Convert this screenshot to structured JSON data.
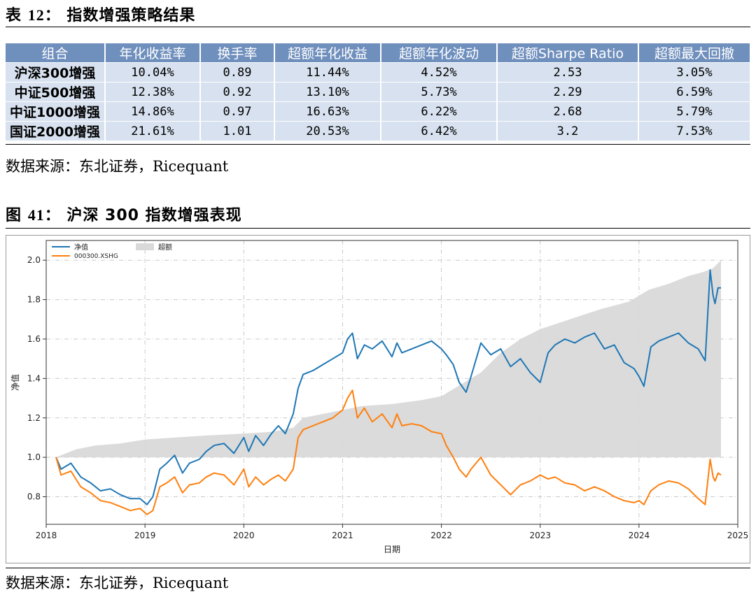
{
  "table_caption": {
    "prefix": "表",
    "number": "12：",
    "title": "指数增强策略结果"
  },
  "table": {
    "headers": [
      "组合",
      "年化收益率",
      "换手率",
      "超额年化收益",
      "超额年化波动",
      "超额Sharpe Ratio",
      "超额最大回撤"
    ],
    "rows": [
      [
        "沪深300增强",
        "10.04%",
        "0.89",
        "11.44%",
        "4.52%",
        "2.53",
        "3.05%"
      ],
      [
        "中证500增强",
        "12.38%",
        "0.92",
        "13.10%",
        "5.73%",
        "2.29",
        "6.59%"
      ],
      [
        "中证1000增强",
        "14.86%",
        "0.97",
        "16.63%",
        "6.22%",
        "2.68",
        "5.79%"
      ],
      [
        "国证2000增强",
        "21.61%",
        "1.01",
        "20.53%",
        "6.42%",
        "3.2",
        "7.53%"
      ]
    ]
  },
  "source_1": "数据来源：东北证券，Ricequant",
  "figure_caption": {
    "prefix": "图",
    "number": "41：",
    "title": "沪深 300 指数增强表现"
  },
  "source_2": "数据来源：东北证券，Ricequant",
  "chart_data": {
    "type": "line",
    "xlabel": "日期",
    "ylabel": "净值",
    "xlim": [
      2018.0,
      2025.0
    ],
    "ylim": [
      0.66,
      2.1
    ],
    "x_ticks": [
      "2018",
      "2019",
      "2020",
      "2021",
      "2022",
      "2023",
      "2024",
      "2025"
    ],
    "y_ticks": [
      "0.8",
      "1.0",
      "1.2",
      "1.4",
      "1.6",
      "1.8",
      "2.0"
    ],
    "grid": true,
    "legend": "top-left",
    "series": [
      {
        "name": "净值",
        "kind": "line",
        "color": "#1f77b4",
        "x": [
          2018.1,
          2018.15,
          2018.25,
          2018.35,
          2018.45,
          2018.55,
          2018.65,
          2018.75,
          2018.85,
          2018.95,
          2019.02,
          2019.08,
          2019.15,
          2019.22,
          2019.3,
          2019.38,
          2019.45,
          2019.55,
          2019.62,
          2019.7,
          2019.8,
          2019.9,
          2020.0,
          2020.05,
          2020.12,
          2020.2,
          2020.28,
          2020.35,
          2020.42,
          2020.5,
          2020.55,
          2020.6,
          2020.7,
          2020.8,
          2020.9,
          2021.0,
          2021.05,
          2021.1,
          2021.15,
          2021.22,
          2021.3,
          2021.4,
          2021.5,
          2021.55,
          2021.6,
          2021.7,
          2021.8,
          2021.9,
          2022.0,
          2022.05,
          2022.12,
          2022.18,
          2022.25,
          2022.3,
          2022.4,
          2022.5,
          2022.6,
          2022.7,
          2022.8,
          2022.9,
          2023.0,
          2023.08,
          2023.15,
          2023.25,
          2023.35,
          2023.45,
          2023.55,
          2023.65,
          2023.75,
          2023.85,
          2023.95,
          2024.0,
          2024.05,
          2024.12,
          2024.2,
          2024.3,
          2024.4,
          2024.5,
          2024.6,
          2024.67,
          2024.72,
          2024.75,
          2024.77,
          2024.8,
          2024.83
        ],
        "values": [
          1.0,
          0.94,
          0.97,
          0.9,
          0.87,
          0.83,
          0.84,
          0.81,
          0.79,
          0.79,
          0.76,
          0.8,
          0.94,
          0.97,
          1.01,
          0.92,
          0.97,
          0.99,
          1.03,
          1.06,
          1.07,
          1.02,
          1.1,
          1.03,
          1.11,
          1.06,
          1.12,
          1.16,
          1.12,
          1.22,
          1.35,
          1.42,
          1.44,
          1.47,
          1.5,
          1.53,
          1.6,
          1.63,
          1.5,
          1.57,
          1.55,
          1.59,
          1.51,
          1.58,
          1.53,
          1.55,
          1.57,
          1.59,
          1.55,
          1.52,
          1.47,
          1.38,
          1.33,
          1.41,
          1.58,
          1.52,
          1.55,
          1.46,
          1.5,
          1.43,
          1.38,
          1.53,
          1.57,
          1.6,
          1.58,
          1.61,
          1.63,
          1.55,
          1.57,
          1.48,
          1.45,
          1.41,
          1.36,
          1.56,
          1.59,
          1.61,
          1.63,
          1.58,
          1.55,
          1.49,
          1.95,
          1.82,
          1.78,
          1.86,
          1.86
        ]
      },
      {
        "name": "000300.XSHG",
        "kind": "line",
        "color": "#ff7f0e",
        "x": [
          2018.1,
          2018.15,
          2018.25,
          2018.35,
          2018.45,
          2018.55,
          2018.65,
          2018.75,
          2018.85,
          2018.95,
          2019.02,
          2019.08,
          2019.15,
          2019.22,
          2019.3,
          2019.38,
          2019.45,
          2019.55,
          2019.62,
          2019.7,
          2019.8,
          2019.9,
          2020.0,
          2020.05,
          2020.12,
          2020.2,
          2020.28,
          2020.35,
          2020.42,
          2020.5,
          2020.55,
          2020.6,
          2020.7,
          2020.8,
          2020.9,
          2021.0,
          2021.05,
          2021.1,
          2021.15,
          2021.22,
          2021.3,
          2021.4,
          2021.5,
          2021.55,
          2021.6,
          2021.7,
          2021.8,
          2021.9,
          2022.0,
          2022.05,
          2022.12,
          2022.18,
          2022.25,
          2022.3,
          2022.4,
          2022.5,
          2022.6,
          2022.7,
          2022.8,
          2022.9,
          2023.0,
          2023.08,
          2023.15,
          2023.25,
          2023.35,
          2023.45,
          2023.55,
          2023.65,
          2023.75,
          2023.85,
          2023.95,
          2024.0,
          2024.05,
          2024.12,
          2024.2,
          2024.3,
          2024.4,
          2024.5,
          2024.6,
          2024.67,
          2024.72,
          2024.75,
          2024.77,
          2024.8,
          2024.83
        ],
        "values": [
          1.0,
          0.91,
          0.93,
          0.85,
          0.82,
          0.78,
          0.77,
          0.75,
          0.73,
          0.74,
          0.71,
          0.73,
          0.85,
          0.87,
          0.9,
          0.82,
          0.86,
          0.87,
          0.9,
          0.92,
          0.91,
          0.86,
          0.94,
          0.85,
          0.9,
          0.86,
          0.89,
          0.91,
          0.88,
          0.94,
          1.1,
          1.14,
          1.16,
          1.18,
          1.2,
          1.24,
          1.3,
          1.34,
          1.2,
          1.25,
          1.18,
          1.22,
          1.15,
          1.22,
          1.16,
          1.17,
          1.16,
          1.13,
          1.12,
          1.06,
          1.0,
          0.94,
          0.9,
          0.94,
          1.0,
          0.91,
          0.86,
          0.81,
          0.86,
          0.88,
          0.91,
          0.89,
          0.9,
          0.87,
          0.86,
          0.83,
          0.85,
          0.83,
          0.8,
          0.78,
          0.77,
          0.78,
          0.76,
          0.83,
          0.86,
          0.88,
          0.87,
          0.84,
          0.79,
          0.76,
          0.99,
          0.9,
          0.88,
          0.92,
          0.91
        ]
      },
      {
        "name": "超额",
        "kind": "area",
        "color": "#d9d9d9",
        "baseline": 1.0,
        "x": [
          2018.1,
          2018.3,
          2018.5,
          2018.75,
          2019.0,
          2019.3,
          2019.6,
          2020.0,
          2020.3,
          2020.5,
          2020.6,
          2020.8,
          2021.0,
          2021.2,
          2021.5,
          2021.8,
          2022.0,
          2022.2,
          2022.4,
          2022.6,
          2022.8,
          2023.0,
          2023.3,
          2023.6,
          2023.9,
          2024.1,
          2024.3,
          2024.5,
          2024.65,
          2024.75,
          2024.83
        ],
        "values": [
          1.0,
          1.04,
          1.06,
          1.07,
          1.09,
          1.1,
          1.11,
          1.12,
          1.13,
          1.15,
          1.2,
          1.22,
          1.24,
          1.26,
          1.27,
          1.29,
          1.31,
          1.37,
          1.43,
          1.53,
          1.6,
          1.65,
          1.7,
          1.75,
          1.79,
          1.85,
          1.88,
          1.92,
          1.94,
          1.96,
          2.0
        ]
      }
    ]
  }
}
